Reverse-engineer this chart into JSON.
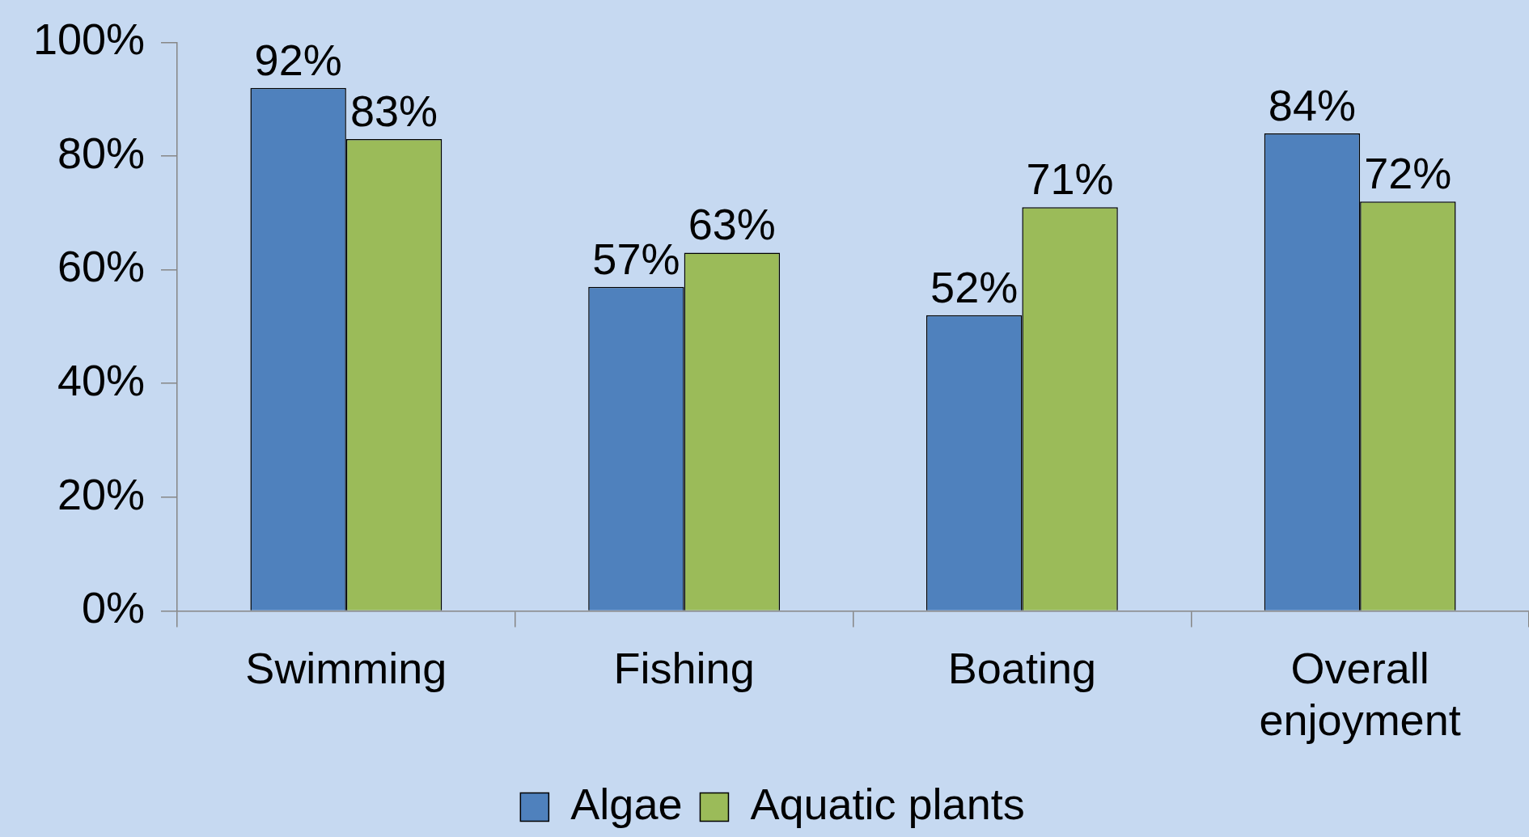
{
  "chart_data": {
    "type": "bar",
    "categories": [
      "Swimming",
      "Fishing",
      "Boating",
      "Overall enjoyment"
    ],
    "series": [
      {
        "name": "Algae",
        "color": "#4f81bd",
        "values": [
          92,
          57,
          52,
          84
        ],
        "value_labels": [
          "92%",
          "57%",
          "52%",
          "84%"
        ]
      },
      {
        "name": "Aquatic plants",
        "color": "#9bbb59",
        "values": [
          83,
          63,
          71,
          72
        ],
        "value_labels": [
          "83%",
          "63%",
          "71%",
          "72%"
        ]
      }
    ],
    "ylim": [
      0,
      100
    ],
    "yticks": [
      {
        "value": 0,
        "label": "0%"
      },
      {
        "value": 20,
        "label": "20%"
      },
      {
        "value": 40,
        "label": "40%"
      },
      {
        "value": 60,
        "label": "60%"
      },
      {
        "value": 80,
        "label": "80%"
      },
      {
        "value": 100,
        "label": "100%"
      }
    ],
    "legend": "bottom"
  }
}
